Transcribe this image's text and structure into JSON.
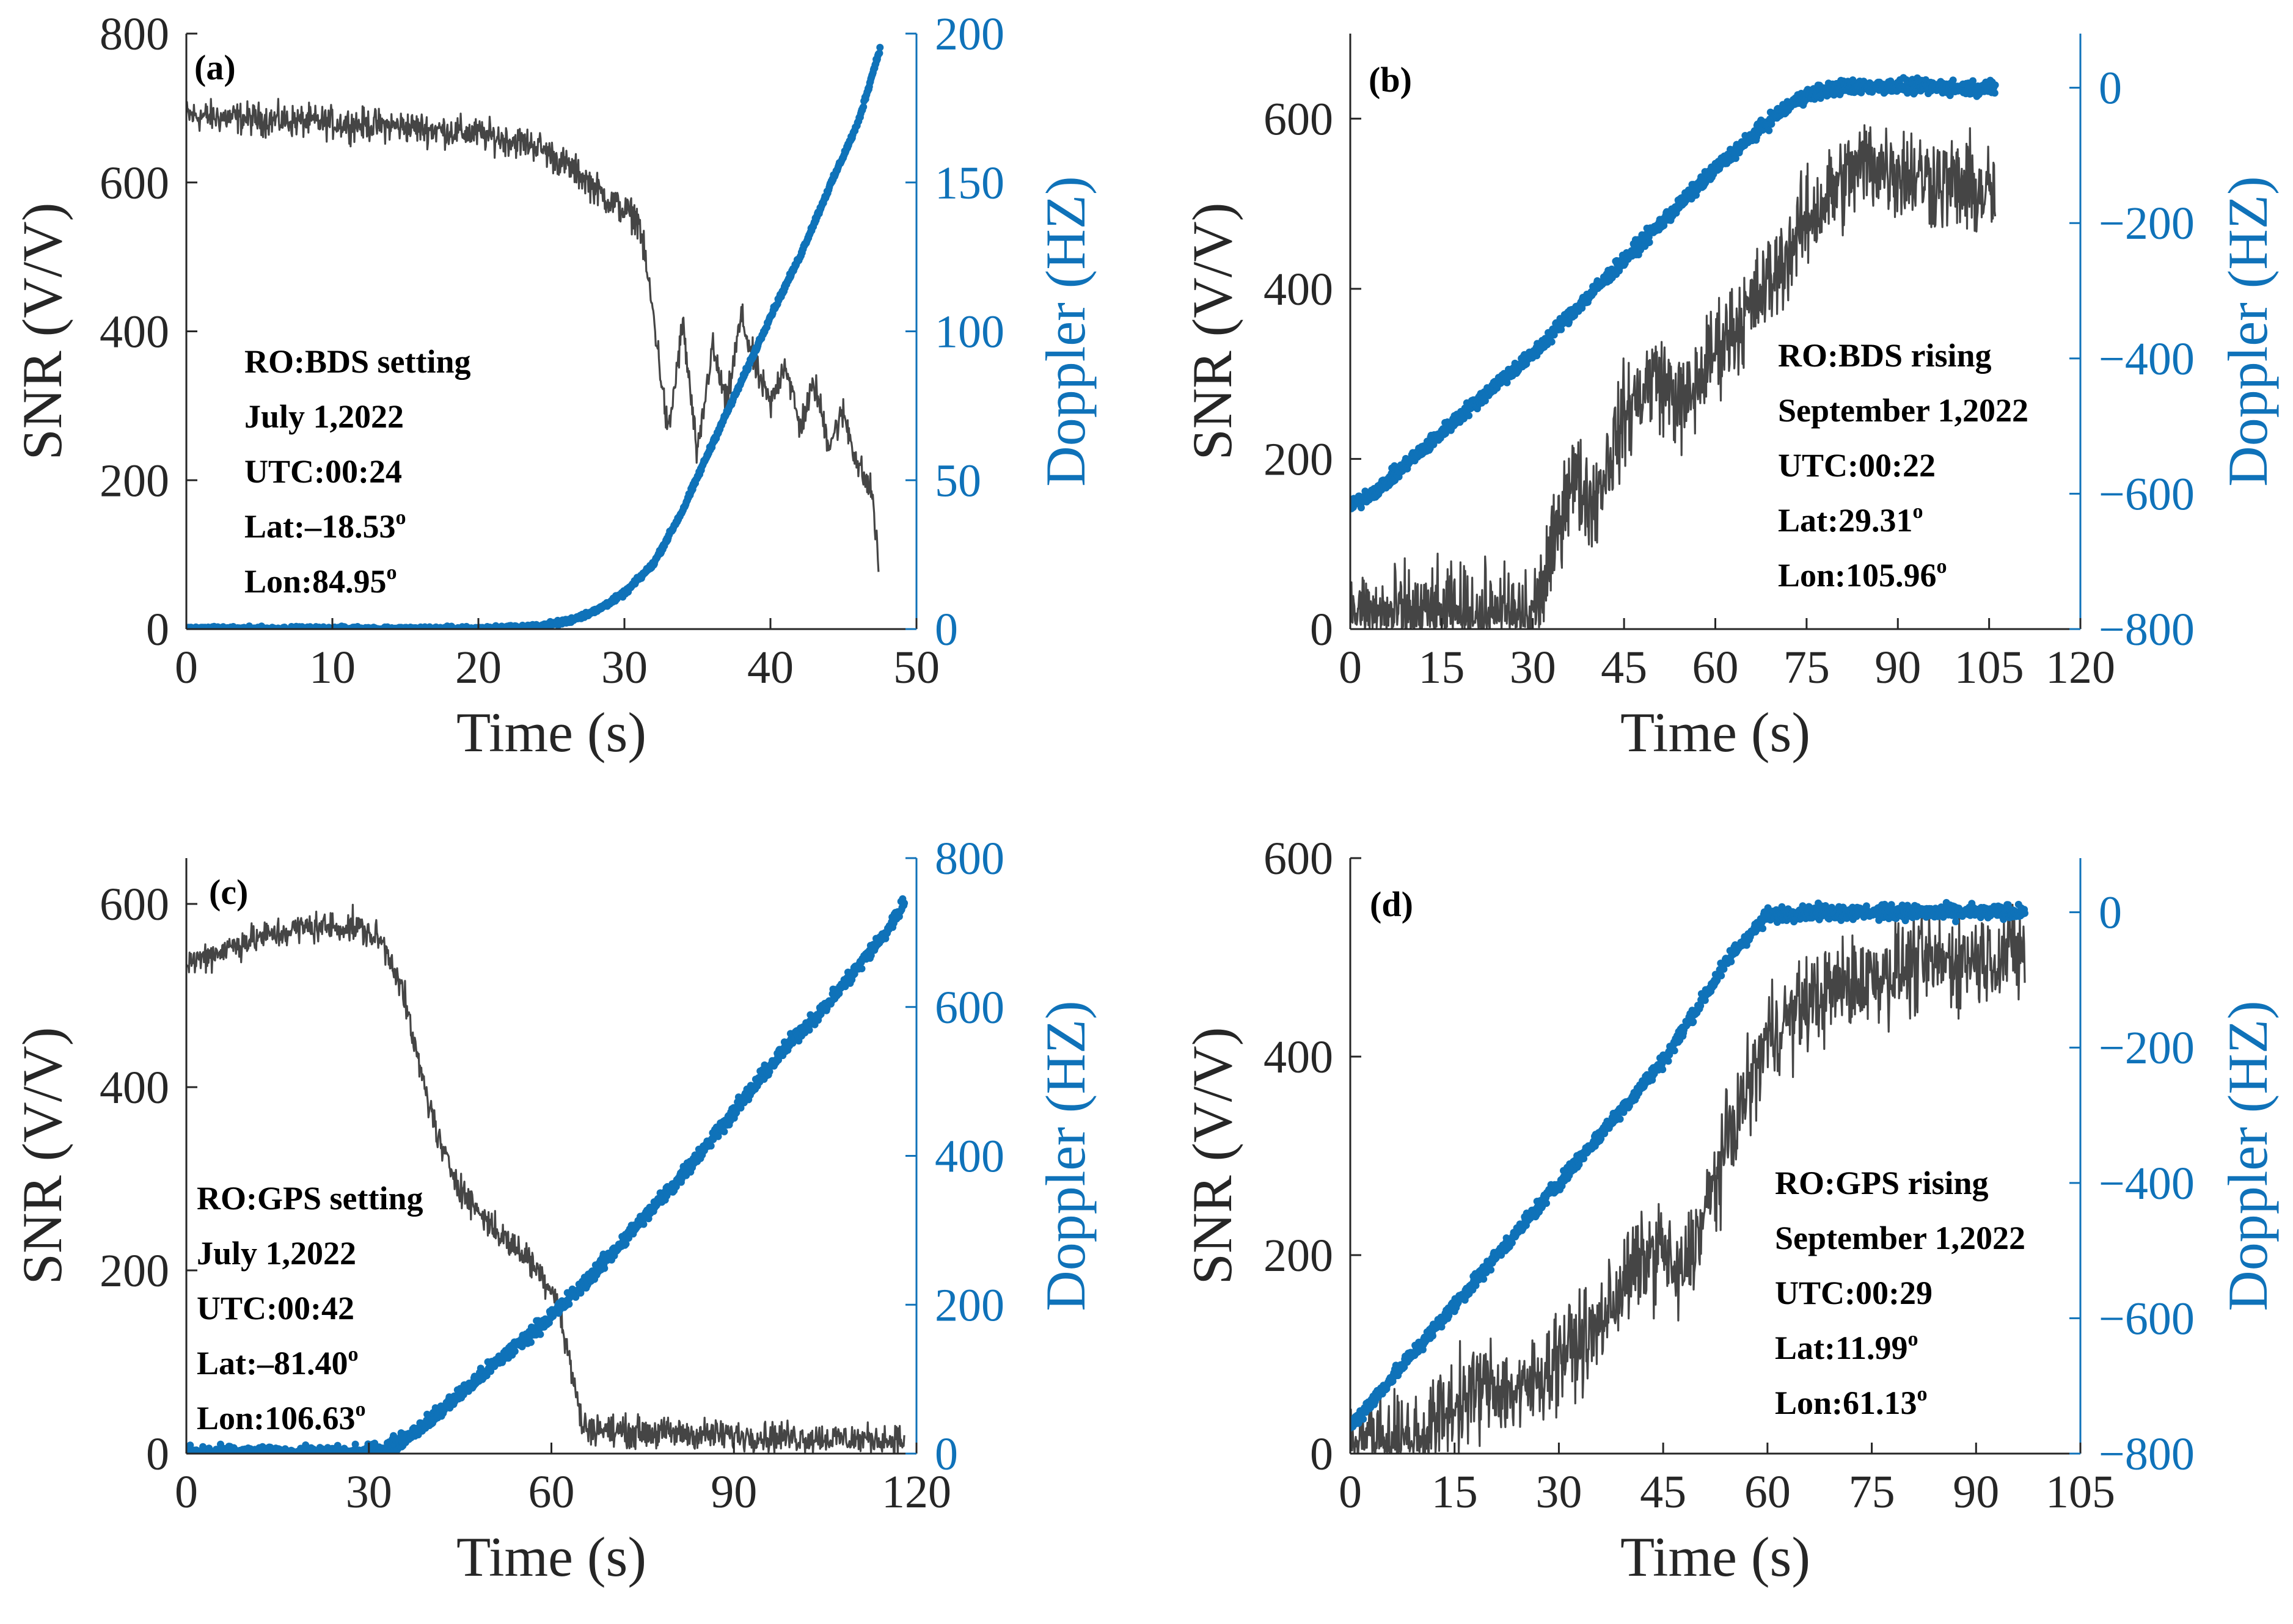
{
  "colors": {
    "snr": "#454545",
    "doppler": "#0f72b9",
    "axis": "#262626",
    "background": "#ffffff"
  },
  "chart_data": [
    {
      "type": "line",
      "panel_label": "(a)",
      "xlabel": "Time (s)",
      "ylabel": "SNR (V/V)",
      "y2label": "Doppler (HZ)",
      "xlim": [
        0,
        50
      ],
      "ylim": [
        0,
        800
      ],
      "y2lim": [
        0,
        200
      ],
      "xticks": [
        0,
        10,
        20,
        30,
        40,
        50
      ],
      "yticks": [
        0,
        200,
        400,
        600,
        800
      ],
      "y2ticks": [
        0,
        50,
        100,
        150,
        200
      ],
      "annotation": [
        {
          "text": "RO:BDS setting"
        },
        {
          "text": "July 1,2022"
        },
        {
          "text": "UTC:00:24"
        },
        {
          "text": "Lat:–18.53",
          "sup": "o"
        },
        {
          "text": "Lon:84.95",
          "sup": "o"
        }
      ],
      "series": [
        {
          "name": "SNR",
          "axis": "left",
          "style": "noisy-line",
          "x": [
            0,
            5,
            10,
            15,
            20,
            24,
            27,
            29,
            31,
            32,
            33,
            34,
            35,
            36,
            37,
            38,
            39,
            40,
            41,
            42,
            43,
            44,
            45,
            46,
            47,
            47.4
          ],
          "y": [
            690,
            685,
            680,
            675,
            665,
            650,
            610,
            575,
            550,
            420,
            260,
            410,
            230,
            380,
            300,
            420,
            350,
            300,
            360,
            270,
            330,
            250,
            290,
            220,
            180,
            80
          ],
          "noise": 32
        },
        {
          "name": "Doppler",
          "axis": "right",
          "style": "dots",
          "x": [
            0,
            10,
            20,
            24,
            26,
            28,
            30,
            32,
            34,
            36,
            38,
            40,
            42,
            44,
            46,
            47.5
          ],
          "y": [
            0,
            0,
            0,
            0.8,
            2.5,
            6,
            12,
            22,
            40,
            62,
            83,
            105,
            125,
            148,
            170,
            195
          ],
          "noise": 1.2
        }
      ]
    },
    {
      "type": "line",
      "panel_label": "(b)",
      "xlabel": "Time (s)",
      "ylabel": "SNR (V/V)",
      "y2label": "Doppler (HZ)",
      "xlim": [
        0,
        120
      ],
      "ylim": [
        0,
        700
      ],
      "y2lim": [
        -800,
        80
      ],
      "xticks": [
        0,
        15,
        30,
        45,
        60,
        75,
        90,
        105,
        120
      ],
      "yticks": [
        0,
        200,
        400,
        600
      ],
      "y2ticks": [
        -800,
        -600,
        -400,
        -200,
        0
      ],
      "annotation": [
        {
          "text": "RO:BDS rising"
        },
        {
          "text": "September 1,2022"
        },
        {
          "text": "UTC:00:22"
        },
        {
          "text": "Lat:29.31",
          "sup": "o"
        },
        {
          "text": "Lon:105.96",
          "sup": "o"
        }
      ],
      "series": [
        {
          "name": "SNR",
          "axis": "left",
          "style": "noisy-line",
          "x": [
            0,
            15,
            30,
            33,
            36,
            40,
            45,
            50,
            55,
            60,
            65,
            70,
            75,
            80,
            85,
            90,
            95,
            100,
            106
          ],
          "y": [
            15,
            15,
            15,
            80,
            180,
            150,
            250,
            300,
            260,
            330,
            370,
            420,
            480,
            520,
            550,
            540,
            530,
            520,
            510
          ],
          "noise": 85
        },
        {
          "name": "Doppler",
          "axis": "right",
          "style": "dots",
          "x": [
            0,
            5,
            10,
            15,
            20,
            25,
            30,
            35,
            40,
            45,
            50,
            55,
            60,
            65,
            70,
            75,
            80,
            85,
            90,
            95,
            100,
            106
          ],
          "y": [
            -620,
            -590,
            -550,
            -510,
            -470,
            -430,
            -395,
            -345,
            -300,
            -255,
            -210,
            -165,
            -120,
            -80,
            -40,
            -10,
            0,
            2,
            2,
            1,
            0,
            0
          ],
          "noise": 15
        }
      ]
    },
    {
      "type": "line",
      "panel_label": "(c)",
      "xlabel": "Time (s)",
      "ylabel": "SNR (V/V)",
      "y2label": "Doppler (HZ)",
      "xlim": [
        0,
        120
      ],
      "ylim": [
        0,
        650
      ],
      "y2lim": [
        0,
        800
      ],
      "xticks": [
        0,
        30,
        60,
        90,
        120
      ],
      "yticks": [
        0,
        200,
        400,
        600
      ],
      "y2ticks": [
        0,
        200,
        400,
        600,
        800
      ],
      "annotation": [
        {
          "text": "RO:GPS setting"
        },
        {
          "text": "July 1,2022"
        },
        {
          "text": "UTC:00:42"
        },
        {
          "text": "Lat:–81.40",
          "sup": "o"
        },
        {
          "text": "Lon:106.63",
          "sup": "o"
        }
      ],
      "series": [
        {
          "name": "SNR",
          "axis": "left",
          "style": "noisy-line",
          "x": [
            0,
            10,
            20,
            28,
            32,
            35,
            38,
            42,
            46,
            50,
            53,
            56,
            59,
            61,
            62,
            63,
            64,
            65,
            70,
            80,
            90,
            100,
            110,
            118
          ],
          "y": [
            535,
            560,
            575,
            575,
            560,
            520,
            430,
            330,
            280,
            250,
            230,
            215,
            190,
            170,
            130,
            100,
            70,
            30,
            25,
            22,
            20,
            18,
            16,
            15
          ],
          "noise": 25
        },
        {
          "name": "Doppler",
          "axis": "right",
          "style": "dots",
          "x": [
            0,
            25,
            30,
            35,
            40,
            45,
            50,
            55,
            60,
            65,
            70,
            75,
            80,
            85,
            90,
            95,
            100,
            105,
            110,
            115,
            118
          ],
          "y": [
            0,
            0,
            2,
            15,
            45,
            80,
            115,
            150,
            185,
            225,
            270,
            315,
            360,
            410,
            460,
            510,
            560,
            600,
            650,
            700,
            740
          ],
          "noise": 14
        }
      ]
    },
    {
      "type": "line",
      "panel_label": "(d)",
      "xlabel": "Time (s)",
      "ylabel": "SNR (V/V)",
      "y2label": "Doppler (HZ)",
      "xlim": [
        0,
        105
      ],
      "ylim": [
        0,
        600
      ],
      "y2lim": [
        -800,
        80
      ],
      "xticks": [
        0,
        15,
        30,
        45,
        60,
        75,
        90,
        105
      ],
      "yticks": [
        0,
        200,
        400,
        600
      ],
      "y2ticks": [
        -800,
        -600,
        -400,
        -200,
        0
      ],
      "annotation": [
        {
          "text": "RO:GPS rising"
        },
        {
          "text": "September 1,2022"
        },
        {
          "text": "UTC:00:29"
        },
        {
          "text": "Lat:11.99",
          "sup": "o"
        },
        {
          "text": "Lon:61.13",
          "sup": "o"
        }
      ],
      "series": [
        {
          "name": "SNR",
          "axis": "left",
          "style": "noisy-line",
          "x": [
            0,
            10,
            15,
            20,
            25,
            30,
            35,
            40,
            45,
            47,
            50,
            55,
            58,
            60,
            65,
            70,
            75,
            80,
            85,
            90,
            97
          ],
          "y": [
            15,
            15,
            50,
            70,
            60,
            100,
            120,
            180,
            210,
            170,
            220,
            330,
            380,
            420,
            450,
            470,
            480,
            490,
            495,
            500,
            505
          ],
          "noise": 70
        },
        {
          "name": "Doppler",
          "axis": "right",
          "style": "dots",
          "x": [
            0,
            5,
            10,
            15,
            20,
            25,
            30,
            35,
            40,
            45,
            50,
            55,
            60,
            65,
            70,
            80,
            90,
            97
          ],
          "y": [
            -760,
            -700,
            -640,
            -580,
            -520,
            -460,
            -400,
            -340,
            -280,
            -220,
            -140,
            -60,
            -5,
            0,
            0,
            0,
            0,
            0
          ],
          "noise": 15
        }
      ]
    }
  ]
}
